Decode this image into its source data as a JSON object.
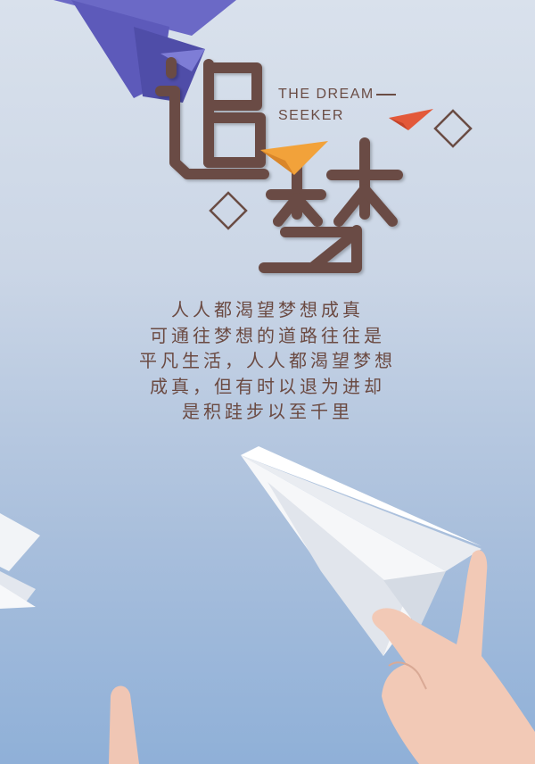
{
  "title": {
    "chars": [
      "追",
      "梦"
    ],
    "tagline_line1": "THE DREAM",
    "tagline_line2": "SEEKER"
  },
  "body": {
    "lines": [
      "人人都渴望梦想成真",
      "可通往梦想的道路往往是",
      "平凡生活，人人都渴望梦想",
      "成真，但有时以退为进却",
      "是积跬步以至千里"
    ]
  },
  "colors": {
    "title_brown": "#6a4c44",
    "accent_orange": "#f2a23a",
    "accent_red": "#e3593a",
    "sky_top": "#d9e1ec",
    "sky_bottom": "#8fb0d8",
    "paper_plane": "#f4f4f4",
    "origami_purple": "#6f6dc8"
  },
  "icons": [
    "paper-plane-icon",
    "diamond-outline-icon"
  ]
}
